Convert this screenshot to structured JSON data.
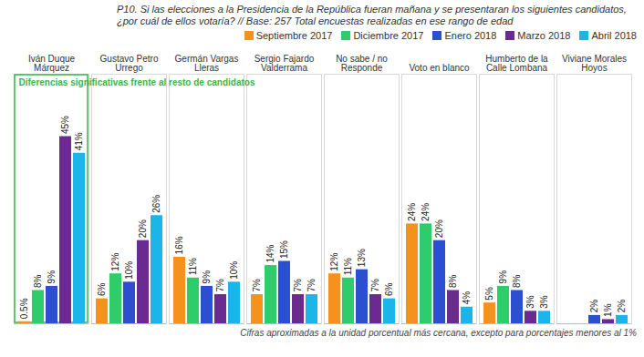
{
  "chart_data": {
    "type": "bar",
    "title": "P10. Si las elecciones a la Presidencia de la República fueran mañana y se presentaran los siguientes candidatos, ¿por cuál de ellos votaría? // Base: 257 Total encuestas realizadas en ese rango de edad",
    "caption": "Cifras aproximadas a la unidad porcentual más cercana, excepto para porcentajes menores al 1%",
    "categories": [
      "Iván Duque Márquez",
      "Gustavo Petro Urrego",
      "Germán Vargas Lleras",
      "Sergio Fajardo Valderrama",
      "No sabe / no Responde",
      "Voto en blanco",
      "Humberto de la Calle Lombana",
      "Viviane Morales Hoyos"
    ],
    "series": [
      {
        "name": "Septiembre 2017",
        "color": "#f5921e",
        "values": [
          0.5,
          6,
          16,
          7,
          12,
          24,
          5,
          null
        ],
        "value_labels": [
          "0.5%",
          "6%",
          "16%",
          "7%",
          "12%",
          "24%",
          "5%",
          null
        ]
      },
      {
        "name": "Diciembre 2017",
        "color": "#2ecc6b",
        "values": [
          8,
          12,
          11,
          14,
          11,
          24,
          9,
          null
        ],
        "value_labels": [
          "8%",
          "12%",
          "11%",
          "14%",
          "11%",
          "24%",
          "9%",
          null
        ]
      },
      {
        "name": "Enero 2018",
        "color": "#2b4fd0",
        "values": [
          9,
          10,
          9,
          15,
          13,
          20,
          8,
          2
        ],
        "value_labels": [
          "9%",
          "10%",
          "9%",
          "15%",
          "13%",
          "20%",
          "8%",
          "2%"
        ]
      },
      {
        "name": "Marzo 2018",
        "color": "#6b2a90",
        "values": [
          45,
          20,
          7,
          7,
          7,
          8,
          3,
          1
        ],
        "value_labels": [
          "45%",
          "20%",
          "7%",
          "7%",
          "7%",
          "8%",
          "3%",
          "1%"
        ]
      },
      {
        "name": "Abril 2018",
        "color": "#1cb5ea",
        "values": [
          41,
          26,
          10,
          7,
          6,
          4,
          3,
          2
        ],
        "value_labels": [
          "41%",
          "26%",
          "10%",
          "7%",
          "6%",
          "4%",
          "3%",
          "2%"
        ]
      }
    ],
    "annotations": [
      {
        "text": "Diferencias significativas frente al resto de candidatos",
        "category": "Iván Duque Márquez"
      }
    ],
    "ylim": [
      0,
      60
    ],
    "yticks": [],
    "tick_labels": "x",
    "data_labels": true,
    "legend": "top-right",
    "grid": false
  }
}
